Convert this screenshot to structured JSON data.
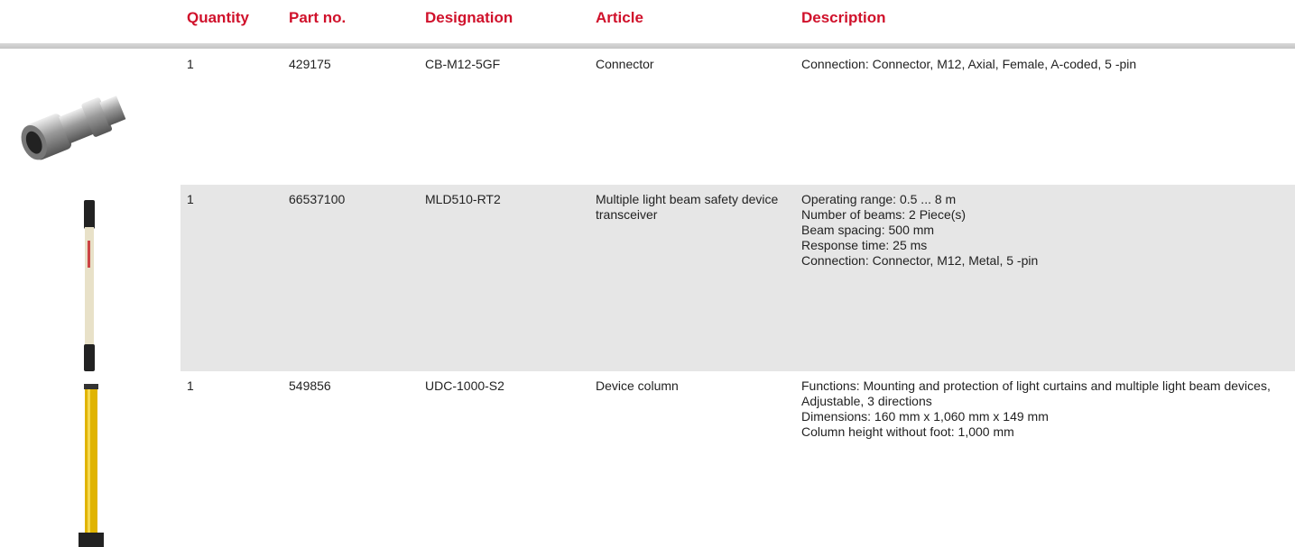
{
  "header": {
    "columns": [
      "Quantity",
      "Part no.",
      "Designation",
      "Article",
      "Description"
    ]
  },
  "table": {
    "rows": [
      {
        "quantity": "1",
        "part_no": "429175",
        "designation": "CB-M12-5GF",
        "article": "Connector",
        "description": [
          "Connection: Connector, M12, Axial, Female, A-coded, 5 -pin"
        ]
      },
      {
        "quantity": "1",
        "part_no": "66537100",
        "designation": "MLD510-RT2",
        "article": "Multiple light beam safety device transceiver",
        "description": [
          "Operating range: 0.5 ... 8 m",
          "Number of beams: 2 Piece(s)",
          "Beam spacing: 500 mm",
          "Response time: 25 ms",
          "Connection: Connector, M12, Metal, 5 -pin"
        ]
      },
      {
        "quantity": "1",
        "part_no": "549856",
        "designation": "UDC-1000-S2",
        "article": "Device column",
        "description": [
          "Functions: Mounting and protection of light curtains and multiple light beam devices, Adjustable, 3 directions",
          "Dimensions: 160 mm x 1,060 mm x 149 mm",
          "Column height without foot: 1,000 mm"
        ]
      }
    ]
  }
}
